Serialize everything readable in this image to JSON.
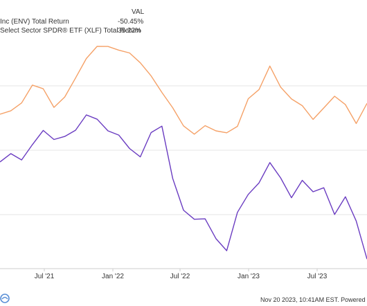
{
  "chart_data": {
    "type": "line",
    "legend": {
      "header": "VAL",
      "entries": [
        {
          "label": "Inc (ENV) Total Return",
          "value": "-50.45%",
          "color": "#f5a167"
        },
        {
          "label": "Select Sector SPDR® ETF (XLF) Total Return",
          "value": "35.22%",
          "color": "#6a3cc1"
        }
      ]
    },
    "x_ticks": [
      "Jul '21",
      "Jan '22",
      "Jul '22",
      "Jan '23",
      "Jul '23"
    ],
    "x": [
      "2021-01",
      "2021-02",
      "2021-03",
      "2021-04",
      "2021-05",
      "2021-06",
      "2021-07",
      "2021-08",
      "2021-09",
      "2021-10",
      "2021-11",
      "2021-12",
      "2022-01",
      "2022-02",
      "2022-03",
      "2022-04",
      "2022-05",
      "2022-06",
      "2022-07",
      "2022-08",
      "2022-09",
      "2022-10",
      "2022-11",
      "2022-12",
      "2023-01",
      "2023-02",
      "2023-03",
      "2023-04",
      "2023-05",
      "2023-06",
      "2023-07",
      "2023-08",
      "2023-09",
      "2023-10",
      "2023-11"
    ],
    "series": [
      {
        "name": "Inc (ENV) Total Return",
        "color": "#f5a167",
        "values": [
          0.68,
          0.7,
          0.72,
          0.82,
          0.78,
          0.72,
          0.75,
          0.84,
          0.93,
          0.97,
          0.99,
          0.95,
          0.96,
          0.9,
          0.85,
          0.78,
          0.7,
          0.64,
          0.58,
          0.64,
          0.6,
          0.6,
          0.63,
          0.74,
          0.8,
          0.88,
          0.81,
          0.74,
          0.72,
          0.66,
          0.7,
          0.77,
          0.71,
          0.65,
          0.72
        ]
      },
      {
        "name": "Select Sector SPDR® ETF (XLF) Total Return",
        "color": "#6a3cc1",
        "values": [
          0.48,
          0.5,
          0.48,
          0.55,
          0.6,
          0.58,
          0.57,
          0.62,
          0.67,
          0.66,
          0.61,
          0.58,
          0.54,
          0.48,
          0.61,
          0.62,
          0.4,
          0.26,
          0.21,
          0.23,
          0.12,
          0.09,
          0.24,
          0.33,
          0.38,
          0.46,
          0.41,
          0.3,
          0.4,
          0.33,
          0.36,
          0.24,
          0.31,
          0.22,
          0.03
        ]
      }
    ]
  },
  "footer": {
    "note": "Nov 20 2023, 10:41AM EST. Powered by"
  }
}
